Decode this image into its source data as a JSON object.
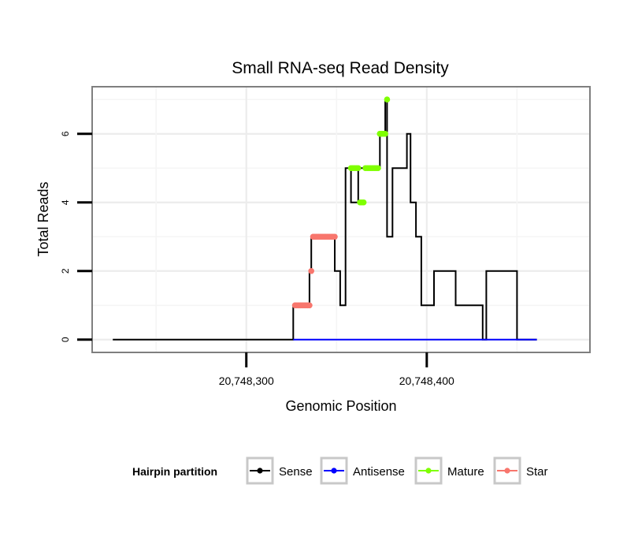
{
  "chart_data": {
    "type": "line",
    "title": "Small RNA-seq Read Density",
    "xlabel": "Genomic Position",
    "ylabel": "Total Reads",
    "xlim": [
      20748215,
      20748490
    ],
    "ylim": [
      -0.35,
      7.35
    ],
    "x_ticks": [
      20748300,
      20748400
    ],
    "x_tick_labels": [
      "20,748,300",
      "20,748,400"
    ],
    "y_ticks": [
      0,
      2,
      4,
      6
    ],
    "y_tick_labels": [
      "0",
      "2",
      "4",
      "6"
    ],
    "grid": true,
    "legend": {
      "title": "Hairpin partition",
      "position": "bottom",
      "entries": [
        "Sense",
        "Antisense",
        "Mature",
        "Star"
      ]
    },
    "series": [
      {
        "name": "Sense",
        "color": "#000000",
        "x": [
          20748226,
          20748326,
          20748326,
          20748327,
          20748327,
          20748335,
          20748335,
          20748336,
          20748336,
          20748337,
          20748337,
          20748349,
          20748349,
          20748352,
          20748352,
          20748355,
          20748355,
          20748358,
          20748358,
          20748362,
          20748362,
          20748366,
          20748366,
          20748374,
          20748374,
          20748377,
          20748377,
          20748378,
          20748378,
          20748381,
          20748381,
          20748389,
          20748389,
          20748391,
          20748391,
          20748394,
          20748394,
          20748397,
          20748397,
          20748404,
          20748404,
          20748406,
          20748406,
          20748416,
          20748416,
          20748431,
          20748431,
          20748433,
          20748433,
          20748450,
          20748450,
          20748461
        ],
        "y": [
          0,
          0,
          1,
          1,
          1,
          1,
          2,
          2,
          3,
          3,
          3,
          3,
          2,
          2,
          1,
          1,
          5,
          5,
          4,
          4,
          5,
          5,
          5,
          5,
          6,
          6,
          7,
          7,
          3,
          3,
          5,
          5,
          6,
          6,
          4,
          4,
          3,
          3,
          1,
          1,
          2,
          2,
          2,
          2,
          1,
          1,
          0,
          0,
          2,
          2,
          0,
          0
        ]
      },
      {
        "name": "Antisense",
        "color": "#0000ff",
        "x": [
          20748326,
          20748461
        ],
        "y": [
          0,
          0
        ]
      },
      {
        "name": "Mature",
        "color": "#7fff00",
        "x": [
          20748358,
          20748359,
          20748360,
          20748361,
          20748362,
          20748363,
          20748364,
          20748365,
          20748366,
          20748367,
          20748368,
          20748369,
          20748370,
          20748371,
          20748372,
          20748373,
          20748374,
          20748375,
          20748376,
          20748377,
          20748378
        ],
        "y": [
          5,
          5,
          5,
          5,
          5,
          4,
          4,
          4,
          5,
          5,
          5,
          5,
          5,
          5,
          5,
          5,
          6,
          6,
          6,
          6,
          7
        ]
      },
      {
        "name": "Star",
        "color": "#f8766d",
        "x": [
          20748327,
          20748328,
          20748329,
          20748330,
          20748331,
          20748332,
          20748333,
          20748334,
          20748335,
          20748336,
          20748337,
          20748338,
          20748339,
          20748340,
          20748341,
          20748342,
          20748343,
          20748344,
          20748345,
          20748346,
          20748347,
          20748348,
          20748349
        ],
        "y": [
          1,
          1,
          1,
          1,
          1,
          1,
          1,
          1,
          1,
          2,
          3,
          3,
          3,
          3,
          3,
          3,
          3,
          3,
          3,
          3,
          3,
          3,
          3
        ]
      }
    ]
  }
}
